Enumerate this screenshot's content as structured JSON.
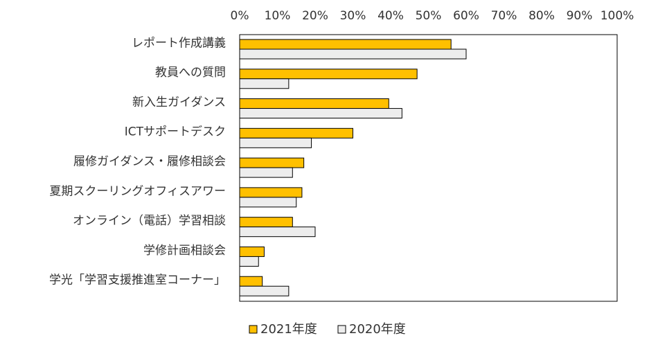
{
  "chart_data": {
    "type": "bar",
    "orientation": "horizontal",
    "x_axis_position": "top",
    "xlim": [
      0,
      100
    ],
    "x_ticks": [
      "0%",
      "10%",
      "20%",
      "30%",
      "40%",
      "50%",
      "60%",
      "70%",
      "80%",
      "90%",
      "100%"
    ],
    "categories": [
      "レポート作成講義",
      "教員への質問",
      "新入生ガイダンス",
      "ICTサポートデスク",
      "履修ガイダンス・履修相談会",
      "夏期スクーリングオフィスアワー",
      "オンライン（電話）学習相談",
      "学修計画相談会",
      "学光「学習支援推進室コーナー」"
    ],
    "series": [
      {
        "name": "2021年度",
        "color": "#FFC000",
        "values": [
          56,
          47,
          39.5,
          30,
          17,
          16.5,
          14,
          6.5,
          6
        ]
      },
      {
        "name": "2020年度",
        "color": "#EDEDED",
        "values": [
          60,
          13,
          43,
          19,
          14,
          15,
          20,
          5,
          13
        ]
      }
    ],
    "legend_position": "bottom",
    "grid": false
  }
}
